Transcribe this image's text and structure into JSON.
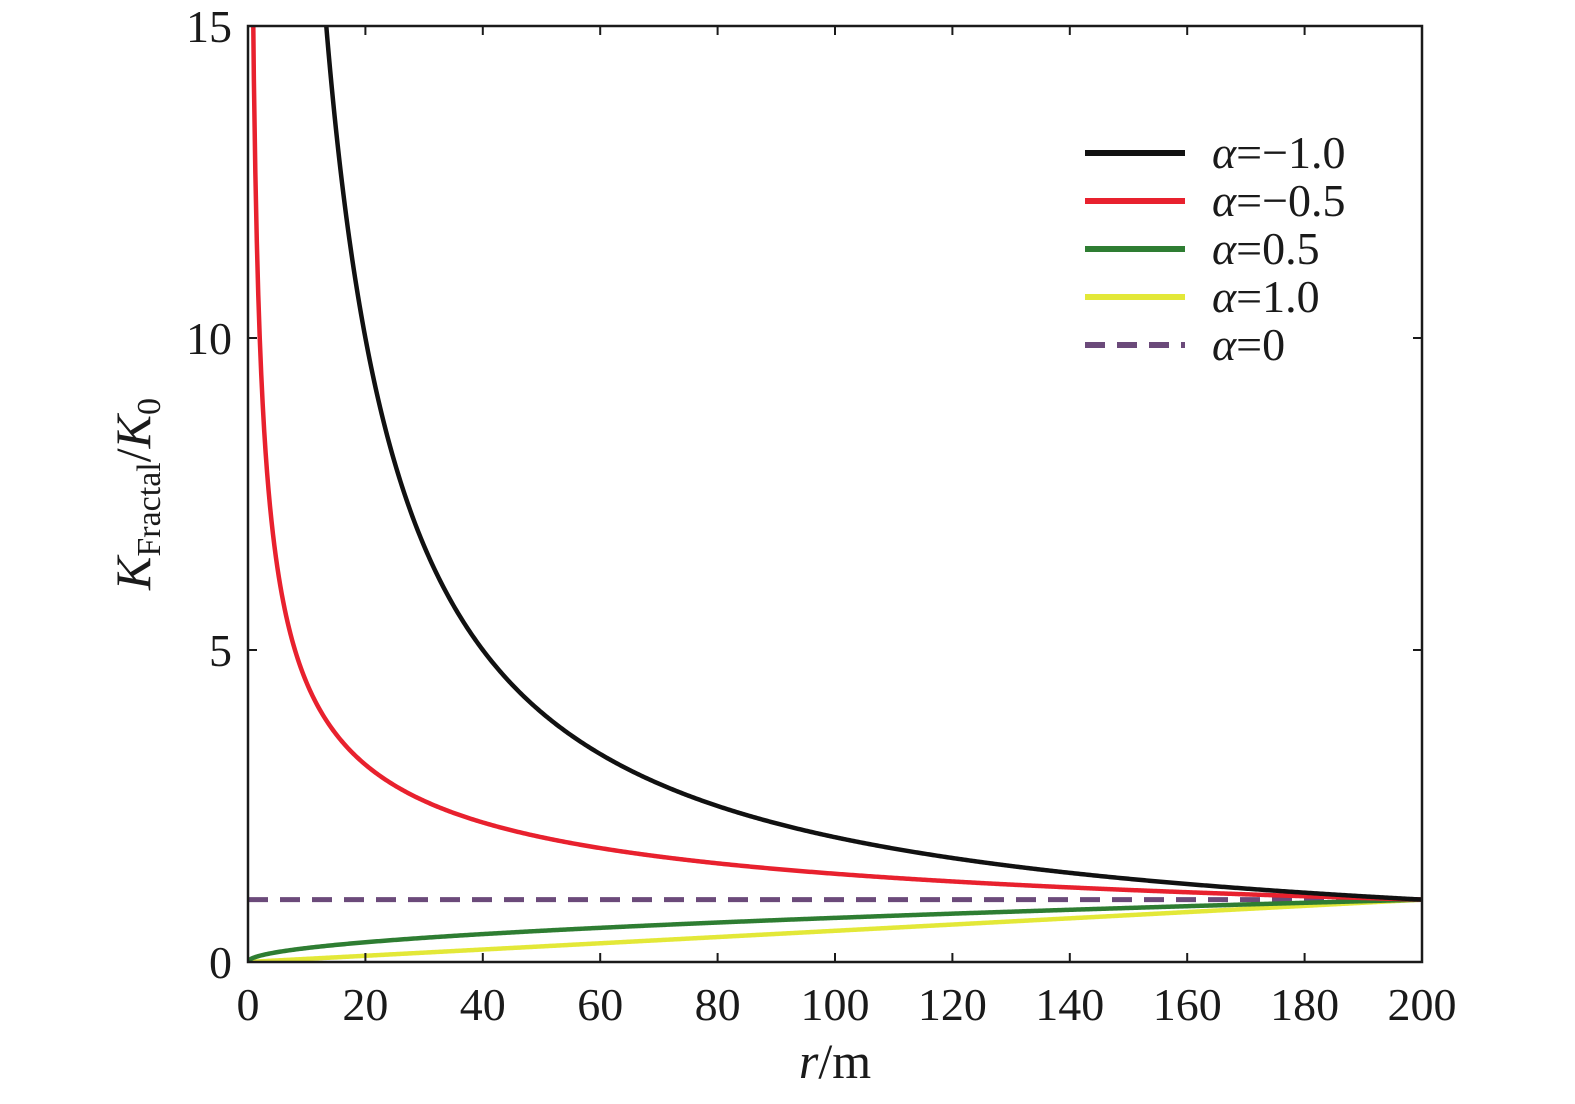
{
  "chart_data": {
    "type": "line",
    "title": "",
    "xlabel": {
      "var": "r",
      "unit": "/m"
    },
    "ylabel": {
      "var": "K",
      "sub": "Fractal",
      "sep": "/",
      "var2": "K",
      "sub2": "0"
    },
    "xlim": [
      0,
      200
    ],
    "ylim": [
      0,
      15
    ],
    "xticks": [
      0,
      20,
      40,
      60,
      80,
      100,
      120,
      140,
      160,
      180,
      200
    ],
    "yticks": [
      0,
      5,
      10,
      15
    ],
    "grid": false,
    "legend_position": "top-right",
    "reference_r": 200,
    "series": [
      {
        "name": "α=−1.0",
        "symbol": "α",
        "value": "=−1.0",
        "alpha": -1.0,
        "color": "#111111",
        "dash": "solid"
      },
      {
        "name": "α=−0.5",
        "symbol": "α",
        "value": "=−0.5",
        "alpha": -0.5,
        "color": "#e8212e",
        "dash": "solid"
      },
      {
        "name": "α=0.5",
        "symbol": "α",
        "value": "=0.5",
        "alpha": 0.5,
        "color": "#2e7d32",
        "dash": "solid"
      },
      {
        "name": "α=1.0",
        "symbol": "α",
        "value": "=1.0",
        "alpha": 1.0,
        "color": "#e3e838",
        "dash": "solid"
      },
      {
        "name": "α=0",
        "symbol": "α",
        "value": "=0",
        "alpha": 0,
        "color": "#6b4a7a",
        "dash": "dashed"
      }
    ],
    "sample_points": {
      "alpha_-1.0": [
        [
          13.3,
          15
        ],
        [
          20,
          10
        ],
        [
          40,
          5
        ],
        [
          60,
          3.33
        ],
        [
          80,
          2.5
        ],
        [
          100,
          2
        ],
        [
          150,
          1.33
        ],
        [
          200,
          1
        ]
      ],
      "alpha_-0.5": [
        [
          1,
          14.1
        ],
        [
          5,
          6.32
        ],
        [
          20,
          3.16
        ],
        [
          50,
          2
        ],
        [
          100,
          1.41
        ],
        [
          150,
          1.15
        ],
        [
          200,
          1
        ]
      ],
      "alpha_0.5": [
        [
          0,
          0
        ],
        [
          20,
          0.32
        ],
        [
          50,
          0.5
        ],
        [
          100,
          0.71
        ],
        [
          150,
          0.87
        ],
        [
          200,
          1
        ]
      ],
      "alpha_1.0": [
        [
          0,
          0
        ],
        [
          50,
          0.25
        ],
        [
          100,
          0.5
        ],
        [
          150,
          0.75
        ],
        [
          200,
          1
        ]
      ],
      "alpha_0": [
        [
          0,
          1
        ],
        [
          200,
          1
        ]
      ]
    }
  }
}
